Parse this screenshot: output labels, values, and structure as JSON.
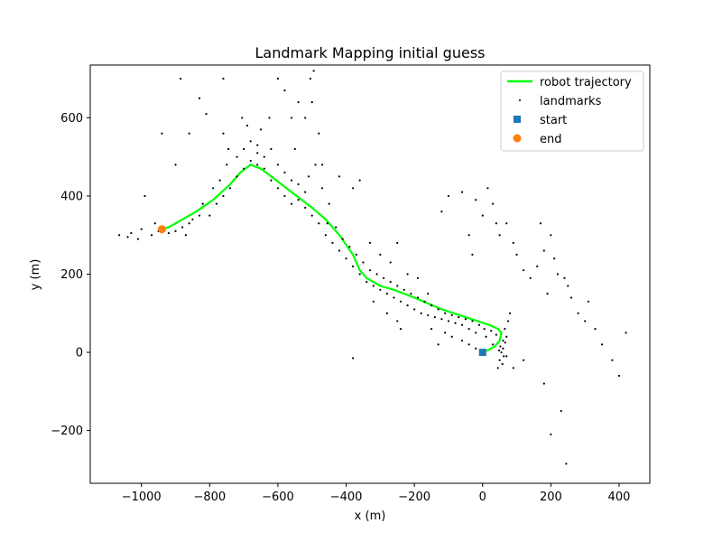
{
  "chart_data": {
    "type": "scatter",
    "title": "Landmark Mapping initial guess",
    "xlabel": "x (m)",
    "ylabel": "y (m)",
    "xlim": [
      -1150,
      490
    ],
    "ylim": [
      -335,
      735
    ],
    "xticks": [
      -1000,
      -800,
      -600,
      -400,
      -200,
      0,
      200,
      400
    ],
    "xtick_labels": [
      "−1000",
      "−800",
      "−600",
      "−400",
      "−200",
      "0",
      "200",
      "400"
    ],
    "yticks": [
      -200,
      0,
      200,
      400,
      600
    ],
    "ytick_labels": [
      "−200",
      "0",
      "200",
      "400",
      "600"
    ],
    "grid": false,
    "legend_position": "top-right",
    "series": [
      {
        "name": "robot trajectory",
        "kind": "line",
        "color": "#00ff00",
        "points": [
          [
            0,
            0
          ],
          [
            15,
            5
          ],
          [
            35,
            15
          ],
          [
            50,
            30
          ],
          [
            55,
            50
          ],
          [
            45,
            60
          ],
          [
            20,
            70
          ],
          [
            -50,
            90
          ],
          [
            -120,
            110
          ],
          [
            -200,
            140
          ],
          [
            -260,
            160
          ],
          [
            -300,
            170
          ],
          [
            -340,
            190
          ],
          [
            -360,
            210
          ],
          [
            -380,
            250
          ],
          [
            -420,
            300
          ],
          [
            -460,
            340
          ],
          [
            -500,
            370
          ],
          [
            -560,
            410
          ],
          [
            -620,
            450
          ],
          [
            -650,
            470
          ],
          [
            -680,
            480
          ],
          [
            -710,
            460
          ],
          [
            -740,
            430
          ],
          [
            -790,
            390
          ],
          [
            -840,
            360
          ],
          [
            -880,
            340
          ],
          [
            -920,
            320
          ],
          [
            -940,
            315
          ]
        ]
      },
      {
        "name": "landmarks",
        "kind": "scatter",
        "color": "#000000",
        "points": [
          [
            -1065,
            300
          ],
          [
            -1040,
            295
          ],
          [
            -1000,
            315
          ],
          [
            -990,
            400
          ],
          [
            -960,
            330
          ],
          [
            -940,
            560
          ],
          [
            -900,
            480
          ],
          [
            -885,
            700
          ],
          [
            -860,
            560
          ],
          [
            -830,
            650
          ],
          [
            -810,
            610
          ],
          [
            -760,
            700
          ],
          [
            -760,
            560
          ],
          [
            -745,
            520
          ],
          [
            -705,
            600
          ],
          [
            -690,
            580
          ],
          [
            -660,
            530
          ],
          [
            -650,
            570
          ],
          [
            -625,
            600
          ],
          [
            -600,
            700
          ],
          [
            -580,
            670
          ],
          [
            -560,
            600
          ],
          [
            -550,
            520
          ],
          [
            -540,
            640
          ],
          [
            -520,
            600
          ],
          [
            -505,
            700
          ],
          [
            -500,
            640
          ],
          [
            -495,
            720
          ],
          [
            -480,
            560
          ],
          [
            -470,
            480
          ],
          [
            -455,
            330
          ],
          [
            -420,
            450
          ],
          [
            -380,
            420
          ],
          [
            -360,
            440
          ],
          [
            -330,
            280
          ],
          [
            -300,
            250
          ],
          [
            -270,
            230
          ],
          [
            -250,
            280
          ],
          [
            -220,
            200
          ],
          [
            -190,
            190
          ],
          [
            -160,
            150
          ],
          [
            -120,
            360
          ],
          [
            -100,
            400
          ],
          [
            -60,
            410
          ],
          [
            -40,
            300
          ],
          [
            -30,
            250
          ],
          [
            -20,
            390
          ],
          [
            0,
            350
          ],
          [
            15,
            420
          ],
          [
            30,
            380
          ],
          [
            40,
            330
          ],
          [
            50,
            300
          ],
          [
            70,
            330
          ],
          [
            90,
            280
          ],
          [
            100,
            250
          ],
          [
            120,
            210
          ],
          [
            140,
            190
          ],
          [
            160,
            220
          ],
          [
            170,
            330
          ],
          [
            180,
            260
          ],
          [
            190,
            150
          ],
          [
            200,
            300
          ],
          [
            210,
            240
          ],
          [
            220,
            200
          ],
          [
            240,
            190
          ],
          [
            250,
            170
          ],
          [
            260,
            140
          ],
          [
            280,
            100
          ],
          [
            300,
            80
          ],
          [
            310,
            130
          ],
          [
            330,
            60
          ],
          [
            350,
            20
          ],
          [
            380,
            -20
          ],
          [
            400,
            -60
          ],
          [
            420,
            50
          ],
          [
            230,
            -150
          ],
          [
            200,
            -210
          ],
          [
            245,
            -285
          ],
          [
            180,
            -80
          ],
          [
            120,
            -20
          ],
          [
            90,
            -40
          ],
          [
            70,
            -10
          ],
          [
            60,
            30
          ],
          [
            55,
            0
          ],
          [
            50,
            -20
          ],
          [
            45,
            -40
          ],
          [
            -380,
            -15
          ],
          [
            -320,
            130
          ],
          [
            -280,
            100
          ],
          [
            -250,
            80
          ],
          [
            -240,
            60
          ],
          [
            -150,
            60
          ],
          [
            -130,
            20
          ],
          [
            -110,
            50
          ],
          [
            -90,
            40
          ],
          [
            -60,
            30
          ],
          [
            -40,
            20
          ],
          [
            -20,
            10
          ],
          [
            -800,
            350
          ],
          [
            -780,
            380
          ],
          [
            -760,
            400
          ],
          [
            -740,
            420
          ],
          [
            -720,
            450
          ],
          [
            -700,
            470
          ],
          [
            -680,
            490
          ],
          [
            -660,
            480
          ],
          [
            -640,
            470
          ],
          [
            -620,
            440
          ],
          [
            -600,
            420
          ],
          [
            -580,
            400
          ],
          [
            -560,
            380
          ],
          [
            -540,
            390
          ],
          [
            -520,
            370
          ],
          [
            -500,
            350
          ],
          [
            -480,
            330
          ],
          [
            -460,
            300
          ],
          [
            -440,
            280
          ],
          [
            -420,
            260
          ],
          [
            -400,
            240
          ],
          [
            -380,
            220
          ],
          [
            -360,
            200
          ],
          [
            -340,
            180
          ],
          [
            -320,
            170
          ],
          [
            -300,
            160
          ],
          [
            -280,
            150
          ],
          [
            -260,
            140
          ],
          [
            -240,
            130
          ],
          [
            -220,
            120
          ],
          [
            -200,
            110
          ],
          [
            -180,
            100
          ],
          [
            -160,
            95
          ],
          [
            -140,
            90
          ],
          [
            -120,
            85
          ],
          [
            -100,
            80
          ],
          [
            -80,
            75
          ],
          [
            -60,
            70
          ],
          [
            -40,
            60
          ],
          [
            -20,
            50
          ],
          [
            10,
            40
          ],
          [
            30,
            20
          ],
          [
            60,
            10
          ],
          [
            70,
            40
          ],
          [
            65,
            60
          ],
          [
            75,
            80
          ],
          [
            80,
            100
          ],
          [
            -860,
            330
          ],
          [
            -880,
            320
          ],
          [
            -900,
            310
          ],
          [
            -920,
            305
          ],
          [
            -950,
            310
          ],
          [
            -970,
            300
          ],
          [
            -1010,
            290
          ],
          [
            -1030,
            305
          ],
          [
            -870,
            300
          ],
          [
            -850,
            340
          ],
          [
            -830,
            350
          ],
          [
            -820,
            380
          ],
          [
            -790,
            420
          ],
          [
            -770,
            440
          ],
          [
            -750,
            480
          ],
          [
            -720,
            500
          ],
          [
            -700,
            520
          ],
          [
            -680,
            540
          ],
          [
            -660,
            510
          ],
          [
            -640,
            500
          ],
          [
            -620,
            520
          ],
          [
            -600,
            480
          ],
          [
            -580,
            460
          ],
          [
            -560,
            440
          ],
          [
            -540,
            430
          ],
          [
            -520,
            410
          ],
          [
            -510,
            450
          ],
          [
            -490,
            480
          ],
          [
            -470,
            420
          ],
          [
            -450,
            380
          ],
          [
            -430,
            320
          ],
          [
            -410,
            290
          ],
          [
            -390,
            270
          ],
          [
            -370,
            250
          ],
          [
            -350,
            230
          ],
          [
            -330,
            210
          ],
          [
            -310,
            200
          ],
          [
            -290,
            190
          ],
          [
            -270,
            180
          ],
          [
            -250,
            170
          ],
          [
            -230,
            160
          ],
          [
            -210,
            150
          ],
          [
            -190,
            140
          ],
          [
            -170,
            130
          ],
          [
            -150,
            120
          ],
          [
            -130,
            110
          ],
          [
            -110,
            100
          ],
          [
            -90,
            95
          ],
          [
            -70,
            90
          ],
          [
            -50,
            85
          ],
          [
            -30,
            80
          ],
          [
            -10,
            70
          ],
          [
            5,
            60
          ],
          [
            25,
            55
          ],
          [
            40,
            45
          ],
          [
            48,
            5
          ],
          [
            58,
            -30
          ],
          [
            62,
            -10
          ],
          [
            52,
            15
          ],
          [
            66,
            25
          ]
        ]
      },
      {
        "name": "start",
        "kind": "marker",
        "marker": "square",
        "color": "#1f77b4",
        "points": [
          [
            0,
            0
          ]
        ]
      },
      {
        "name": "end",
        "kind": "marker",
        "marker": "circle",
        "color": "#ff7f0e",
        "points": [
          [
            -940,
            315
          ]
        ]
      }
    ]
  }
}
